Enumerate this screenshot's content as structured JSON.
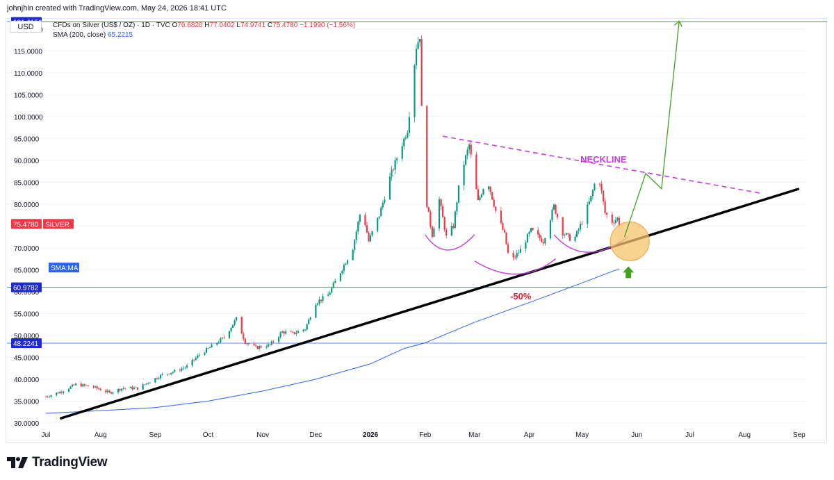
{
  "header": {
    "caption": "johnjhin created with TradingView.com, May 24, 2026 18:41 UTC",
    "currency": "USD",
    "symbol": "CFDs on Silver (US$ / OZ) · 1D · TVC",
    "open_label": "O",
    "open": "76.6820",
    "high_label": "H",
    "high": "77.0402",
    "low_label": "L",
    "low": "74.9741",
    "close_label": "C",
    "close": "75.4780",
    "change": "−1.1990 (−1.56%)",
    "sma_label": "SMA (200, close)",
    "sma_value": "65.2215"
  },
  "footer": {
    "brand": "TradingView"
  },
  "colors": {
    "up": "#089981",
    "down": "#f23645",
    "sma": "#2962ff",
    "trendline": "#000000",
    "neckline": "#c23ee0",
    "projection": "#3fa31e",
    "cup": "#c23ee0",
    "highlight_fill": "#f7c46c",
    "arrow": "#3fa31e"
  },
  "chart_data": {
    "type": "candlestick",
    "title": "CFDs on Silver (US$ / OZ)",
    "interval": "1D",
    "x_range": [
      "2025-07-01",
      "2026-09-05"
    ],
    "y_range": [
      29.5,
      122.5
    ],
    "ylabel": "USD",
    "y_ticks": [
      "30.0000",
      "35.0000",
      "40.0000",
      "45.0000",
      "50.0000",
      "55.0000",
      "60.0000",
      "65.0000",
      "70.0000",
      "75.0000",
      "80.0000",
      "85.0000",
      "90.0000",
      "95.0000",
      "100.0000",
      "105.0000",
      "110.0000",
      "115.0000",
      "120.0000"
    ],
    "x_ticks": [
      "Jul",
      "Aug",
      "Sep",
      "Oct",
      "Nov",
      "Dec",
      "2026",
      "Feb",
      "Mar",
      "Apr",
      "May",
      "Jun",
      "Jul",
      "Aug",
      "Sep"
    ],
    "last_price": {
      "value": "75.4780",
      "label": "SILVER"
    },
    "sma_tag": "SMA:MA",
    "horizontal_levels": [
      {
        "value": 121.6151,
        "label": "121.6151"
      },
      {
        "value": 60.9782,
        "label": "60.9782"
      },
      {
        "value": 48.2241,
        "label": "48.2241"
      }
    ],
    "price_path": [
      [
        "2025-07-01",
        36.0
      ],
      [
        "2025-07-10",
        37.2
      ],
      [
        "2025-07-18",
        38.8
      ],
      [
        "2025-07-28",
        38.2
      ],
      [
        "2025-08-06",
        36.9
      ],
      [
        "2025-08-14",
        38.0
      ],
      [
        "2025-08-22",
        37.9
      ],
      [
        "2025-08-29",
        39.5
      ],
      [
        "2025-09-05",
        41.0
      ],
      [
        "2025-09-12",
        41.8
      ],
      [
        "2025-09-19",
        42.9
      ],
      [
        "2025-09-26",
        45.6
      ],
      [
        "2025-10-03",
        47.5
      ],
      [
        "2025-10-10",
        49.5
      ],
      [
        "2025-10-17",
        53.8
      ],
      [
        "2025-10-22",
        48.5
      ],
      [
        "2025-10-28",
        47.2
      ],
      [
        "2025-11-05",
        47.8
      ],
      [
        "2025-11-12",
        50.8
      ],
      [
        "2025-11-18",
        50.4
      ],
      [
        "2025-11-25",
        51.5
      ],
      [
        "2025-12-01",
        57.5
      ],
      [
        "2025-12-08",
        59.2
      ],
      [
        "2025-12-15",
        64.5
      ],
      [
        "2025-12-22",
        70.0
      ],
      [
        "2025-12-27",
        79.5
      ],
      [
        "2025-12-31",
        71.5
      ],
      [
        "2026-01-06",
        77.5
      ],
      [
        "2026-01-12",
        86.0
      ],
      [
        "2026-01-16",
        90.5
      ],
      [
        "2026-01-22",
        97.0
      ],
      [
        "2026-01-27",
        116.0
      ],
      [
        "2026-01-29",
        118.5
      ],
      [
        "2026-01-31",
        85.0
      ],
      [
        "2026-02-03",
        77.5
      ],
      [
        "2026-02-05",
        73.0
      ],
      [
        "2026-02-09",
        81.0
      ],
      [
        "2026-02-13",
        72.5
      ],
      [
        "2026-02-17",
        75.0
      ],
      [
        "2026-02-21",
        86.5
      ],
      [
        "2026-02-26",
        93.5
      ],
      [
        "2026-03-03",
        80.5
      ],
      [
        "2026-03-08",
        86.0
      ],
      [
        "2026-03-13",
        78.5
      ],
      [
        "2026-03-18",
        73.0
      ],
      [
        "2026-03-21",
        66.5
      ],
      [
        "2026-03-27",
        69.5
      ],
      [
        "2026-04-02",
        74.0
      ],
      [
        "2026-04-09",
        71.5
      ],
      [
        "2026-04-15",
        79.5
      ],
      [
        "2026-04-20",
        73.5
      ],
      [
        "2026-04-26",
        71.5
      ],
      [
        "2026-05-01",
        76.0
      ],
      [
        "2026-05-06",
        81.5
      ],
      [
        "2026-05-10",
        87.5
      ],
      [
        "2026-05-14",
        78.0
      ],
      [
        "2026-05-18",
        76.0
      ],
      [
        "2026-05-21",
        76.7
      ],
      [
        "2026-05-22",
        75.478
      ]
    ],
    "sma200": [
      [
        "2025-07-01",
        32.2
      ],
      [
        "2025-08-01",
        32.8
      ],
      [
        "2025-09-01",
        33.5
      ],
      [
        "2025-10-01",
        35.0
      ],
      [
        "2025-11-01",
        37.3
      ],
      [
        "2025-12-01",
        40.0
      ],
      [
        "2026-01-01",
        43.5
      ],
      [
        "2026-01-20",
        47.0
      ],
      [
        "2026-02-01",
        48.3
      ],
      [
        "2026-03-01",
        53.0
      ],
      [
        "2026-04-01",
        57.5
      ],
      [
        "2026-05-01",
        62.0
      ],
      [
        "2026-05-22",
        65.2215
      ]
    ],
    "annotations": {
      "neckline_label": "NECKLINE",
      "drawdown_label": "-50%",
      "trendline": [
        [
          "2025-07-09",
          31.0
        ],
        [
          "2026-09-01",
          83.5
        ]
      ],
      "neckline": [
        [
          "2026-02-11",
          95.5
        ],
        [
          "2026-08-10",
          82.5
        ]
      ],
      "projection": [
        [
          "2026-05-25",
          72.5
        ],
        [
          "2026-06-06",
          87.0
        ],
        [
          "2026-06-15",
          83.5
        ],
        [
          "2026-06-25",
          121.8
        ]
      ],
      "highlight_center": [
        "2026-05-28",
        71.5
      ],
      "cups": [
        [
          [
            "2026-02-01",
            73.0
          ],
          [
            "2026-02-14",
            69.5
          ],
          [
            "2026-03-01",
            73.0
          ]
        ],
        [
          [
            "2026-03-01",
            67.0
          ],
          [
            "2026-03-25",
            64.0
          ],
          [
            "2026-04-16",
            67.5
          ]
        ],
        [
          [
            "2026-04-15",
            73.0
          ],
          [
            "2026-05-04",
            69.0
          ],
          [
            "2026-05-27",
            72.5
          ]
        ]
      ]
    }
  }
}
